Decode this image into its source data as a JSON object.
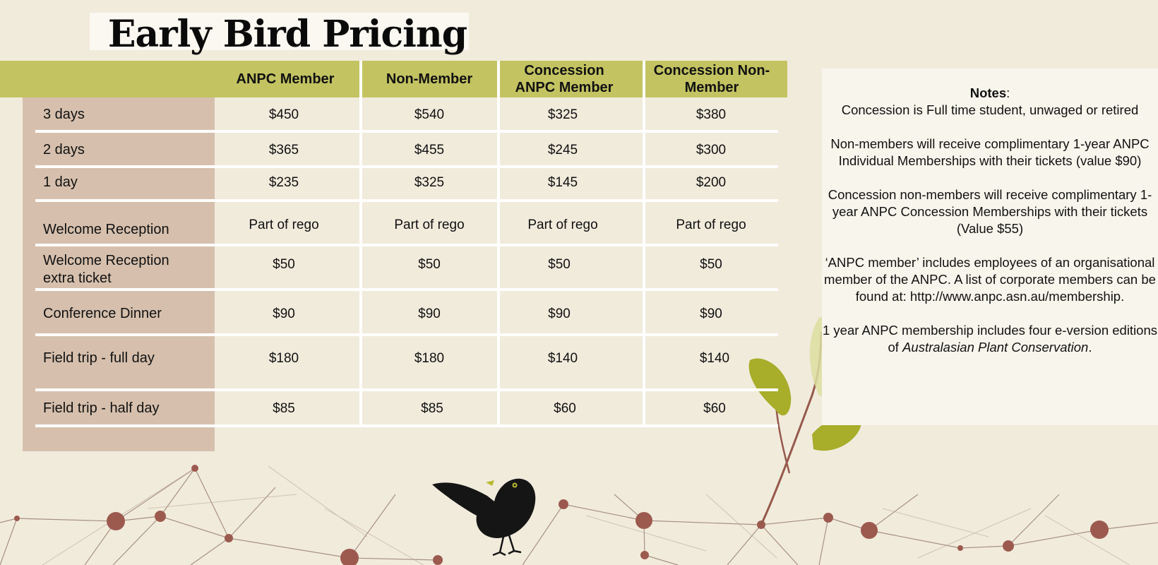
{
  "title": "Early Bird Pricing",
  "columns": [
    "ANPC Member",
    "Non-Member",
    "Concession ANPC Member",
    "Concession Non-Member"
  ],
  "rows": [
    {
      "label": "3 days",
      "values": [
        "$450",
        "$540",
        "$325",
        "$380"
      ]
    },
    {
      "label": "2 days",
      "values": [
        "$365",
        "$455",
        "$245",
        "$300"
      ]
    },
    {
      "label": "1 day",
      "values": [
        "$235",
        "$325",
        "$145",
        "$200"
      ]
    },
    {
      "label": "Welcome Reception",
      "values": [
        "Part of rego",
        "Part of rego",
        "Part of rego",
        "Part of rego"
      ]
    },
    {
      "label": "Welcome Reception extra ticket",
      "values": [
        "$50",
        "$50",
        "$50",
        "$50"
      ]
    },
    {
      "label": "Conference Dinner",
      "values": [
        "$90",
        "$90",
        "$90",
        "$90"
      ]
    },
    {
      "label": "Field trip - full day",
      "values": [
        "$180",
        "$180",
        "$140",
        "$140"
      ]
    },
    {
      "label": "Field trip - half day",
      "values": [
        "$85",
        "$85",
        "$60",
        "$60"
      ]
    }
  ],
  "notes": {
    "heading": "Notes",
    "concession_def": "Concession is Full time student, unwaged or retired",
    "nonmember": "Non-members will receive complimentary 1-year ANPC Individual Memberships with their tickets (value $90)",
    "concession_nonmember": "Concession non-members will receive complimentary 1-year ANPC Concession Memberships with their tickets (Value $55)",
    "anpc_member": "‘ANPC member’ includes employees of an organisational member of the ANPC. A list of corporate members can be found at: http://www.anpc.asn.au/membership.",
    "membership_prefix": "1 year ANPC membership includes four e-version editions of ",
    "membership_publication": "Australasian Plant Conservation",
    "membership_suffix": "."
  },
  "colors": {
    "background": "#f1ebdc",
    "header": "#c3c362",
    "label_column": "#d6c0ad",
    "network_node": "#9c5a4f",
    "leaf": "#a8ad2a",
    "bird": "#151515"
  }
}
